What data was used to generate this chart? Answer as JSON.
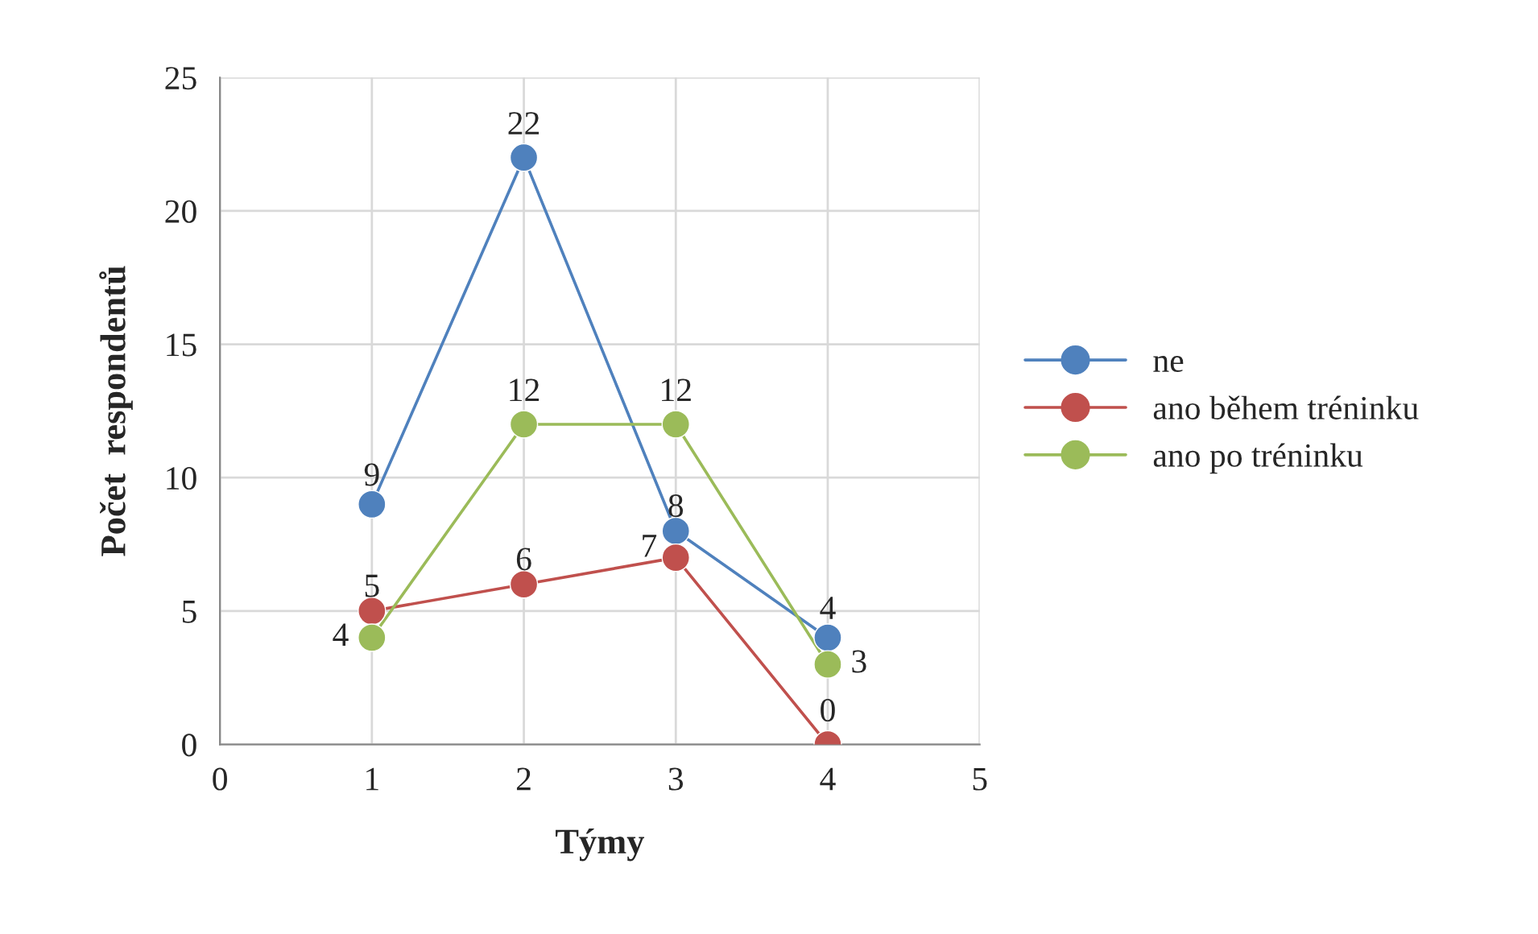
{
  "chart_data": {
    "type": "line",
    "xlabel": "Týmy",
    "ylabel": "Počet  respondentů",
    "x": [
      1,
      2,
      3,
      4
    ],
    "series": [
      {
        "name": "ne",
        "color": "#4f81bd",
        "values": [
          9,
          22,
          8,
          4
        ]
      },
      {
        "name": "ano během tréninku",
        "color": "#c0504d",
        "values": [
          5,
          6,
          7,
          0
        ]
      },
      {
        "name": "ano po tréninku",
        "color": "#9bbb59",
        "values": [
          4,
          12,
          12,
          3
        ]
      }
    ],
    "xlim": [
      0,
      5
    ],
    "xticks": [
      0,
      1,
      2,
      3,
      4,
      5
    ],
    "ylim": [
      0,
      25
    ],
    "yticks": [
      0,
      5,
      10,
      15,
      20,
      25
    ],
    "grid": true,
    "legend": "right",
    "marker": "circle",
    "line_style": "solid",
    "data_labels": true
  }
}
